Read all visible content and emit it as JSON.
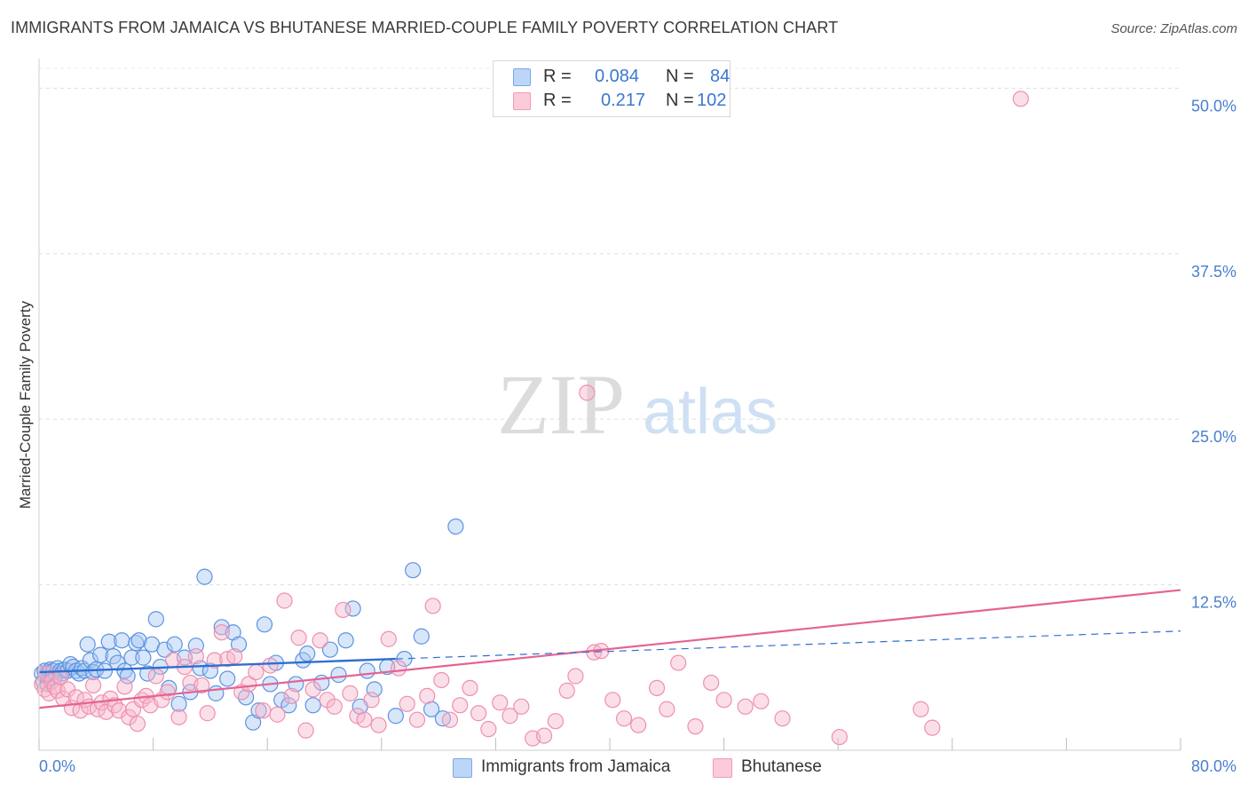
{
  "header": {
    "title": "IMMIGRANTS FROM JAMAICA VS BHUTANESE MARRIED-COUPLE FAMILY POVERTY CORRELATION CHART",
    "source": "Source: ZipAtlas.com"
  },
  "watermark": {
    "zip": "ZIP",
    "atlas": "atlas"
  },
  "legend": {
    "rows": [
      {
        "r_label": "R =",
        "r_value": "0.084",
        "n_label": "N =",
        "n_value": "84",
        "color": "#a9c8f3"
      },
      {
        "r_label": "R =",
        "r_value": "0.217",
        "n_label": "N =",
        "n_value": "102",
        "color": "#f7b8cc"
      }
    ]
  },
  "bottom_legend": {
    "series1": "Immigrants from Jamaica",
    "series2": "Bhutanese"
  },
  "chart_data": {
    "type": "scatter",
    "title": "IMMIGRANTS FROM JAMAICA VS BHUTANESE MARRIED-COUPLE FAMILY POVERTY CORRELATION CHART",
    "ylabel": "Married-Couple Family Poverty",
    "xlabel": "",
    "xlim": [
      0,
      80
    ],
    "ylim": [
      0,
      51.5
    ],
    "x_tick_labels": [
      "0.0%",
      "80.0%"
    ],
    "y_ticks": [
      12.5,
      25.0,
      37.5,
      50.0
    ],
    "y_tick_labels": [
      "12.5%",
      "25.0%",
      "37.5%",
      "50.0%"
    ],
    "grid": true,
    "colors": {
      "jamaica": "#6fa0e6",
      "jamaica_line": "#2f6fd1",
      "bhutanese": "#f29ab6",
      "bhutanese_line": "#e46393"
    },
    "series": [
      {
        "name": "Immigrants from Jamaica",
        "trend": {
          "x0": 0,
          "y0": 5.9,
          "x1": 25,
          "y1": 6.9,
          "dash_x1": 80,
          "dash_y1": 9.0
        },
        "points": [
          [
            0.2,
            5.8
          ],
          [
            0.3,
            5.2
          ],
          [
            0.4,
            6.0
          ],
          [
            0.5,
            5.6
          ],
          [
            0.6,
            5.0
          ],
          [
            0.7,
            5.9
          ],
          [
            0.8,
            6.1
          ],
          [
            0.9,
            5.5
          ],
          [
            1.0,
            6.0
          ],
          [
            1.2,
            5.7
          ],
          [
            1.3,
            6.2
          ],
          [
            1.5,
            6.0
          ],
          [
            1.6,
            5.8
          ],
          [
            1.8,
            6.1
          ],
          [
            2.0,
            6.0
          ],
          [
            2.2,
            6.5
          ],
          [
            2.4,
            6.3
          ],
          [
            2.6,
            6.0
          ],
          [
            2.8,
            5.8
          ],
          [
            3.0,
            6.2
          ],
          [
            3.2,
            6.0
          ],
          [
            3.4,
            8.0
          ],
          [
            3.6,
            6.8
          ],
          [
            3.8,
            5.9
          ],
          [
            4.0,
            6.1
          ],
          [
            4.3,
            7.2
          ],
          [
            4.6,
            6.0
          ],
          [
            4.9,
            8.2
          ],
          [
            5.2,
            7.1
          ],
          [
            5.5,
            6.6
          ],
          [
            5.8,
            8.3
          ],
          [
            6.0,
            6.0
          ],
          [
            6.2,
            5.6
          ],
          [
            6.5,
            7.0
          ],
          [
            6.8,
            8.1
          ],
          [
            7.0,
            8.3
          ],
          [
            7.3,
            7.0
          ],
          [
            7.6,
            5.8
          ],
          [
            7.9,
            8.0
          ],
          [
            8.2,
            9.9
          ],
          [
            8.5,
            6.3
          ],
          [
            8.8,
            7.6
          ],
          [
            9.1,
            4.7
          ],
          [
            9.5,
            8.0
          ],
          [
            9.8,
            3.5
          ],
          [
            10.2,
            7.0
          ],
          [
            10.6,
            4.4
          ],
          [
            11.0,
            7.9
          ],
          [
            11.3,
            6.2
          ],
          [
            11.6,
            13.1
          ],
          [
            12.0,
            6.0
          ],
          [
            12.4,
            4.3
          ],
          [
            12.8,
            9.3
          ],
          [
            13.2,
            5.4
          ],
          [
            13.6,
            8.9
          ],
          [
            14.0,
            8.0
          ],
          [
            14.5,
            4.0
          ],
          [
            15.0,
            2.1
          ],
          [
            15.4,
            3.0
          ],
          [
            15.8,
            9.5
          ],
          [
            16.2,
            5.0
          ],
          [
            16.6,
            6.6
          ],
          [
            17.0,
            3.8
          ],
          [
            17.5,
            3.4
          ],
          [
            18.0,
            5.0
          ],
          [
            18.5,
            6.8
          ],
          [
            18.8,
            7.3
          ],
          [
            19.2,
            3.4
          ],
          [
            19.8,
            5.1
          ],
          [
            20.4,
            7.6
          ],
          [
            21.0,
            5.7
          ],
          [
            21.5,
            8.3
          ],
          [
            22.0,
            10.7
          ],
          [
            22.5,
            3.3
          ],
          [
            23.0,
            6.0
          ],
          [
            23.5,
            4.6
          ],
          [
            24.4,
            6.3
          ],
          [
            25.0,
            2.6
          ],
          [
            25.6,
            6.9
          ],
          [
            26.2,
            13.6
          ],
          [
            26.8,
            8.6
          ],
          [
            27.5,
            3.1
          ],
          [
            28.3,
            2.4
          ],
          [
            29.2,
            16.9
          ]
        ]
      },
      {
        "name": "Bhutanese",
        "trend": {
          "x0": 0,
          "y0": 3.2,
          "x1": 80,
          "y1": 12.1
        },
        "points": [
          [
            0.2,
            5.0
          ],
          [
            0.4,
            4.6
          ],
          [
            0.5,
            5.8
          ],
          [
            0.7,
            4.3
          ],
          [
            0.9,
            5.2
          ],
          [
            1.1,
            4.8
          ],
          [
            1.3,
            4.5
          ],
          [
            1.5,
            5.5
          ],
          [
            1.7,
            3.9
          ],
          [
            2.0,
            4.6
          ],
          [
            2.3,
            3.2
          ],
          [
            2.6,
            4.0
          ],
          [
            2.9,
            3.0
          ],
          [
            3.2,
            3.8
          ],
          [
            3.5,
            3.3
          ],
          [
            3.8,
            4.9
          ],
          [
            4.1,
            3.1
          ],
          [
            4.4,
            3.6
          ],
          [
            4.7,
            2.9
          ],
          [
            5.0,
            3.9
          ],
          [
            5.3,
            3.4
          ],
          [
            5.6,
            3.0
          ],
          [
            6.0,
            4.8
          ],
          [
            6.3,
            2.5
          ],
          [
            6.6,
            3.1
          ],
          [
            6.9,
            2.0
          ],
          [
            7.2,
            3.8
          ],
          [
            7.5,
            4.1
          ],
          [
            7.8,
            3.4
          ],
          [
            8.2,
            5.6
          ],
          [
            8.6,
            3.8
          ],
          [
            9.0,
            4.4
          ],
          [
            9.4,
            6.8
          ],
          [
            9.8,
            2.5
          ],
          [
            10.2,
            6.3
          ],
          [
            10.6,
            5.1
          ],
          [
            11.0,
            7.1
          ],
          [
            11.4,
            4.9
          ],
          [
            11.8,
            2.8
          ],
          [
            12.3,
            6.8
          ],
          [
            12.8,
            8.9
          ],
          [
            13.2,
            6.9
          ],
          [
            13.7,
            7.1
          ],
          [
            14.2,
            4.4
          ],
          [
            14.7,
            5.0
          ],
          [
            15.2,
            5.9
          ],
          [
            15.7,
            3.0
          ],
          [
            16.2,
            6.4
          ],
          [
            16.7,
            2.7
          ],
          [
            17.2,
            11.3
          ],
          [
            17.7,
            4.1
          ],
          [
            18.2,
            8.5
          ],
          [
            18.7,
            1.5
          ],
          [
            19.2,
            4.6
          ],
          [
            19.7,
            8.3
          ],
          [
            20.2,
            3.8
          ],
          [
            20.7,
            3.3
          ],
          [
            21.3,
            10.6
          ],
          [
            21.8,
            4.3
          ],
          [
            22.3,
            2.6
          ],
          [
            22.8,
            2.3
          ],
          [
            23.3,
            3.8
          ],
          [
            23.8,
            1.9
          ],
          [
            24.5,
            8.4
          ],
          [
            25.2,
            6.2
          ],
          [
            25.8,
            3.5
          ],
          [
            26.5,
            2.3
          ],
          [
            27.2,
            4.1
          ],
          [
            27.6,
            10.9
          ],
          [
            28.2,
            5.3
          ],
          [
            28.8,
            2.3
          ],
          [
            29.5,
            3.4
          ],
          [
            30.2,
            4.7
          ],
          [
            30.8,
            2.8
          ],
          [
            31.5,
            1.6
          ],
          [
            32.3,
            3.6
          ],
          [
            33.0,
            2.6
          ],
          [
            33.8,
            3.3
          ],
          [
            34.6,
            0.9
          ],
          [
            35.4,
            1.1
          ],
          [
            36.2,
            2.2
          ],
          [
            37.0,
            4.5
          ],
          [
            37.6,
            5.6
          ],
          [
            38.4,
            27.0
          ],
          [
            38.9,
            7.4
          ],
          [
            39.4,
            7.5
          ],
          [
            40.2,
            3.8
          ],
          [
            41.0,
            2.4
          ],
          [
            42.0,
            1.9
          ],
          [
            43.3,
            4.7
          ],
          [
            44.0,
            3.1
          ],
          [
            44.8,
            6.6
          ],
          [
            46.0,
            1.8
          ],
          [
            47.1,
            5.1
          ],
          [
            48.0,
            3.8
          ],
          [
            49.5,
            3.3
          ],
          [
            50.6,
            3.7
          ],
          [
            52.1,
            2.4
          ],
          [
            56.1,
            1.0
          ],
          [
            61.8,
            3.1
          ],
          [
            62.6,
            1.7
          ],
          [
            68.8,
            49.2
          ]
        ]
      }
    ]
  }
}
